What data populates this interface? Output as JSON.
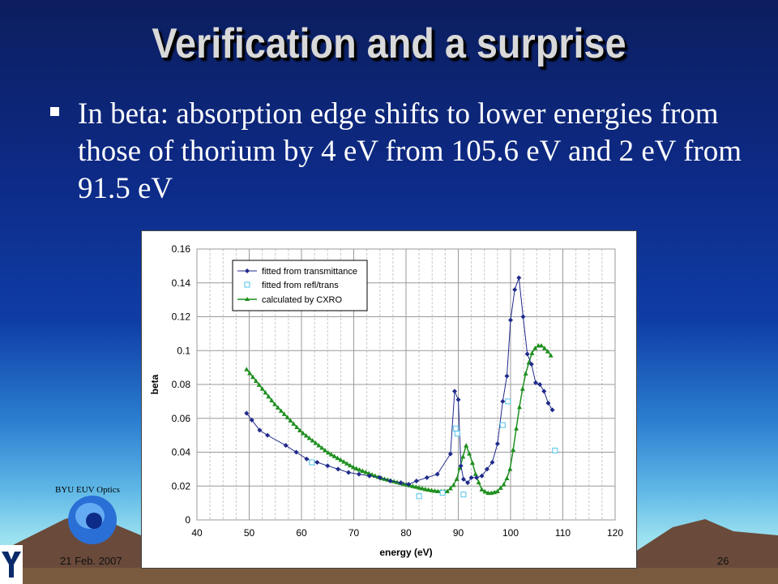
{
  "slide": {
    "title": "Verification and a surprise",
    "bullet": "In beta: absorption edge shifts to lower energies from those of thorium by 4 eV from 105.6 eV and 2 eV from 91.5 eV",
    "logo_text": "BYU EUV Optics",
    "footer_date": "21 Feb. 2007",
    "page_number": "26"
  },
  "colors": {
    "transmittance": "#1f2a8a",
    "refl_trans": "#4fc3e8",
    "cxro": "#1e8f1e"
  },
  "chart_data": {
    "type": "scatter",
    "xlabel": "energy (eV)",
    "ylabel": "beta",
    "xlim": [
      40,
      120
    ],
    "ylim": [
      0,
      0.16
    ],
    "x_ticks": [
      "40",
      "50",
      "60",
      "70",
      "80",
      "90",
      "100",
      "110",
      "120"
    ],
    "y_ticks": [
      "0",
      "0.02",
      "0.04",
      "0.06",
      "0.08",
      "0.1",
      "0.12",
      "0.14",
      "0.16"
    ],
    "grid": true,
    "legend_position": "top-left",
    "series": [
      {
        "name": "fitted from transmittance",
        "style": "line-diamond",
        "points": [
          [
            49.5,
            0.063
          ],
          [
            50.5,
            0.059
          ],
          [
            52,
            0.053
          ],
          [
            53.5,
            0.05
          ],
          [
            57,
            0.044
          ],
          [
            59,
            0.04
          ],
          [
            61,
            0.036
          ],
          [
            63,
            0.034
          ],
          [
            65,
            0.032
          ],
          [
            67,
            0.03
          ],
          [
            69,
            0.028
          ],
          [
            71,
            0.027
          ],
          [
            73,
            0.026
          ],
          [
            75,
            0.025
          ],
          [
            77,
            0.023
          ],
          [
            79,
            0.022
          ],
          [
            80.5,
            0.021
          ],
          [
            82,
            0.023
          ],
          [
            84,
            0.025
          ],
          [
            86,
            0.027
          ],
          [
            88.5,
            0.039
          ],
          [
            89.3,
            0.076
          ],
          [
            90,
            0.071
          ],
          [
            90.5,
            0.032
          ],
          [
            91,
            0.024
          ],
          [
            91.8,
            0.022
          ],
          [
            92.5,
            0.025
          ],
          [
            93.5,
            0.025
          ],
          [
            94.5,
            0.026
          ],
          [
            95.5,
            0.03
          ],
          [
            96.5,
            0.034
          ],
          [
            97.5,
            0.045
          ],
          [
            98.5,
            0.07
          ],
          [
            99.3,
            0.085
          ],
          [
            100,
            0.118
          ],
          [
            100.8,
            0.136
          ],
          [
            101.6,
            0.143
          ],
          [
            102.4,
            0.12
          ],
          [
            103.2,
            0.098
          ],
          [
            104,
            0.092
          ],
          [
            104.8,
            0.081
          ],
          [
            105.6,
            0.08
          ],
          [
            106.4,
            0.076
          ],
          [
            107.2,
            0.069
          ],
          [
            108,
            0.065
          ]
        ]
      },
      {
        "name": "fitted from refl/trans",
        "style": "marker-square",
        "points": [
          [
            62,
            0.034
          ],
          [
            82.5,
            0.014
          ],
          [
            87,
            0.016
          ],
          [
            89.5,
            0.054
          ],
          [
            89.8,
            0.051
          ],
          [
            91,
            0.015
          ],
          [
            98.5,
            0.056
          ],
          [
            99.5,
            0.07
          ],
          [
            108.5,
            0.041
          ]
        ]
      },
      {
        "name": "calculated by CXRO",
        "style": "line-triangle",
        "curve": [
          [
            49.5,
            0.089
          ],
          [
            55,
            0.068
          ],
          [
            60,
            0.052
          ],
          [
            65,
            0.04
          ],
          [
            70,
            0.031
          ],
          [
            75,
            0.025
          ],
          [
            80,
            0.021
          ],
          [
            84,
            0.018
          ],
          [
            86,
            0.017
          ],
          [
            88,
            0.017
          ],
          [
            89.5,
            0.022
          ],
          [
            90.5,
            0.033
          ],
          [
            91.5,
            0.044
          ],
          [
            92.5,
            0.036
          ],
          [
            93.5,
            0.025
          ],
          [
            94.5,
            0.018
          ],
          [
            95.5,
            0.016
          ],
          [
            96.5,
            0.016
          ],
          [
            97.5,
            0.017
          ],
          [
            99,
            0.022
          ],
          [
            100,
            0.031
          ],
          [
            101,
            0.052
          ],
          [
            102,
            0.073
          ],
          [
            103,
            0.088
          ],
          [
            104,
            0.098
          ],
          [
            105,
            0.103
          ],
          [
            106,
            0.103
          ],
          [
            107,
            0.1
          ],
          [
            108,
            0.096
          ]
        ]
      }
    ]
  }
}
